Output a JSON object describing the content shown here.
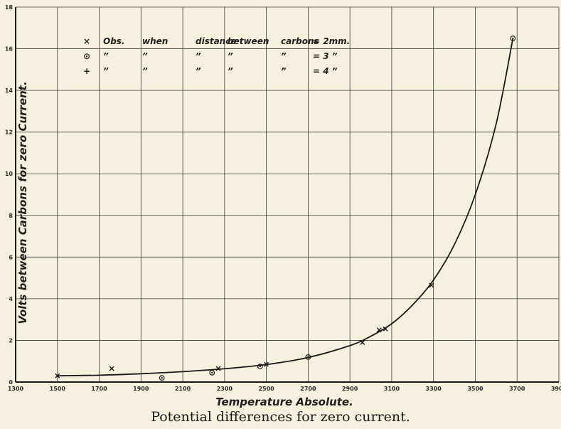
{
  "caption": "Potential differences for zero current.",
  "chart_data": {
    "type": "scatter",
    "title": "",
    "xlabel": "Temperature Absolute.",
    "ylabel": "Volts between Carbons for zero Current.",
    "xlim": [
      1300,
      3900
    ],
    "ylim": [
      0,
      18
    ],
    "grid": true,
    "xticks": [
      "1300",
      "1500",
      "1700",
      "1900",
      "2100",
      "2300",
      "2500",
      "2700",
      "2900",
      "3100",
      "3300",
      "3500",
      "3700",
      "3900"
    ],
    "yticks": [
      "0",
      "2",
      "4",
      "6",
      "8",
      "10",
      "12",
      "14",
      "16",
      "18"
    ],
    "x_tick_labels": [
      "1300",
      "1500",
      "1700",
      "1900",
      "2100",
      "2300",
      "2500",
      "2700",
      "2900",
      "3100",
      "3300",
      "3500",
      "3700",
      "3900"
    ],
    "y_tick_labels": [
      "0",
      "2",
      "4",
      "6",
      "8",
      "10",
      "12",
      "14",
      "16",
      "18"
    ],
    "legend": {
      "position": "top-left",
      "rows": [
        {
          "symbol": "×",
          "cells": [
            "Obs.",
            "when",
            "distance",
            "between",
            "carbons",
            "= 2mm."
          ]
        },
        {
          "symbol": "⊙",
          "cells": [
            "”",
            "”",
            "”",
            "”",
            "”",
            "= 3 ”"
          ]
        },
        {
          "symbol": "+",
          "cells": [
            "”",
            "”",
            "”",
            "”",
            "”",
            "= 4 ”"
          ]
        }
      ]
    },
    "series": [
      {
        "marker": "x",
        "points": [
          [
            1500,
            0.3
          ],
          [
            1760,
            0.65
          ],
          [
            2270,
            0.65
          ],
          [
            2500,
            0.85
          ],
          [
            2960,
            1.9
          ],
          [
            3040,
            2.5
          ],
          [
            3070,
            2.55
          ],
          [
            3290,
            4.65
          ]
        ]
      },
      {
        "marker": "circle",
        "points": [
          [
            2000,
            0.2
          ],
          [
            2240,
            0.45
          ],
          [
            2470,
            0.75
          ],
          [
            2700,
            1.2
          ],
          [
            3680,
            16.5
          ]
        ]
      }
    ],
    "curve": [
      [
        1500,
        0.3
      ],
      [
        1700,
        0.33
      ],
      [
        1900,
        0.4
      ],
      [
        2100,
        0.5
      ],
      [
        2300,
        0.64
      ],
      [
        2500,
        0.84
      ],
      [
        2700,
        1.18
      ],
      [
        2900,
        1.75
      ],
      [
        3000,
        2.2
      ],
      [
        3100,
        2.8
      ],
      [
        3200,
        3.7
      ],
      [
        3300,
        4.9
      ],
      [
        3400,
        6.6
      ],
      [
        3500,
        9.0
      ],
      [
        3600,
        12.4
      ],
      [
        3680,
        16.5
      ]
    ]
  }
}
